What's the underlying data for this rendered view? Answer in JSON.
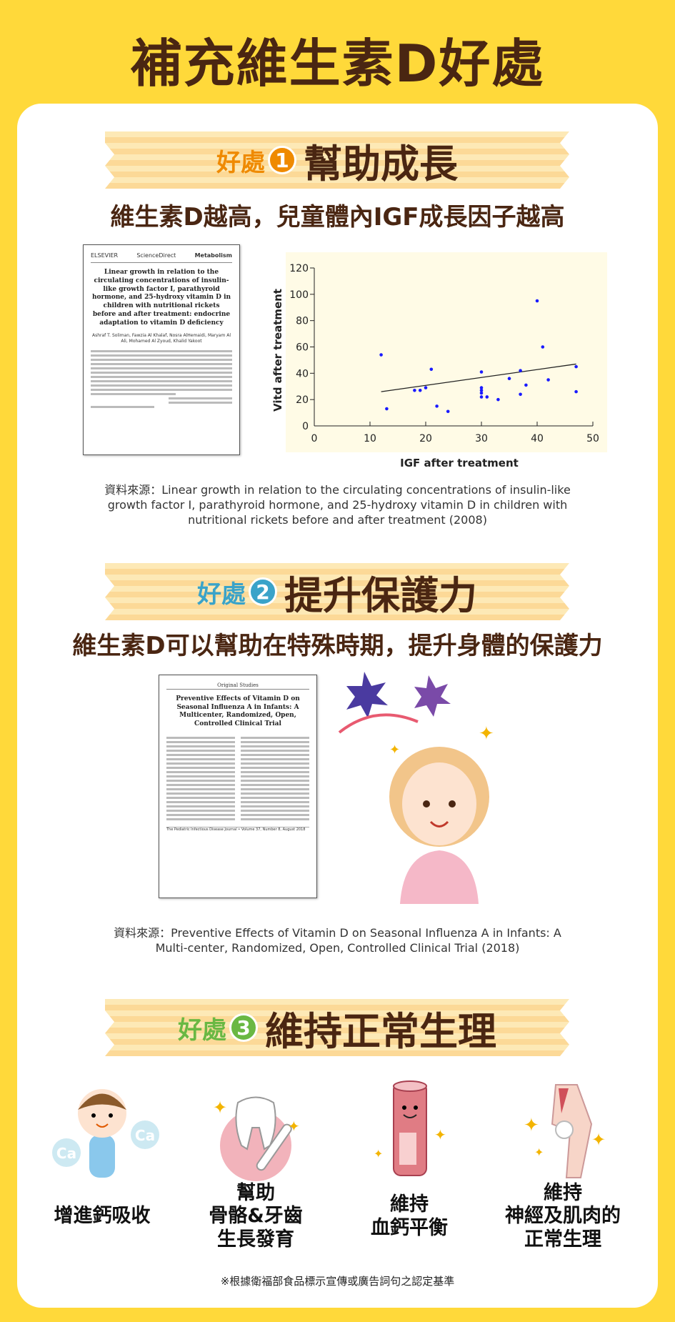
{
  "title": "補充維生素D好處",
  "benefit_tag": "好處",
  "sections": [
    {
      "num": "1",
      "heading": "幫助成長",
      "subtitle": "維生素D越高，兒童體內IGF成長因子越高",
      "color": "#ef8a00",
      "paper": {
        "journal": "Metabolism",
        "publisher": "ScienceDirect",
        "title": "Linear growth in relation to the circulating concentrations of insulin-like growth factor I, parathyroid hormone, and 25-hydroxy vitamin D in children with nutritional rickets before and after treatment: endocrine adaptation to vitamin D deficiency",
        "authors": "Ashraf T. Soliman, Fawzia Al Khalaf, Nosra AlHemaidi, Maryam Al Ali, Mohamed Al Zyoud, Khalid Yakoot"
      },
      "source": "資料來源：Linear growth in relation to the circulating concentrations of insulin-like growth factor I, parathyroid hormone, and 25-hydroxy vitamin D in children with nutritional rickets before and after treatment (2008)"
    },
    {
      "num": "2",
      "heading": "提升保護力",
      "subtitle": "維生素D可以幫助在特殊時期，提升身體的保護力",
      "color": "#3aa3c9",
      "paper": {
        "section": "Original Studies",
        "title": "Preventive Effects of Vitamin D on Seasonal Influenza A in Infants: A Multicenter, Randomized, Open, Controlled Clinical Trial",
        "footer": "The Pediatric Infectious Disease Journal • Volume 37, Number 8, August 2018"
      },
      "source": "資料來源：Preventive Effects of Vitamin D on Seasonal Influenza A in Infants: A Multi-center, Randomized, Open, Controlled Clinical Trial (2018)"
    },
    {
      "num": "3",
      "heading": "維持正常生理",
      "color": "#6ab843"
    }
  ],
  "features": [
    {
      "label": "增進鈣吸收",
      "icon": "baby-calcium-icon",
      "badge": "Ca"
    },
    {
      "label": "幫助\n骨骼&牙齒\n生長發育",
      "icon": "tooth-bone-icon"
    },
    {
      "label": "維持\n血鈣平衡",
      "icon": "blood-vessel-icon"
    },
    {
      "label": "維持\n神經及肌肉的\n正常生理",
      "icon": "knee-joint-icon"
    }
  ],
  "footnote": "※根據衛福部食品標示宣傳或廣告詞句之認定基準",
  "colors": {
    "background": "#ffd93a",
    "text": "#4a2612",
    "point": "#1a1aff",
    "chart_bg": "#fffbe6"
  },
  "chart_data": {
    "type": "scatter",
    "xlabel": "IGF after treatment",
    "ylabel": "Vitd after treatment",
    "xlim": [
      0,
      50
    ],
    "ylim": [
      0,
      120
    ],
    "xticks": [
      0,
      10,
      20,
      30,
      40,
      50
    ],
    "yticks": [
      0,
      20,
      40,
      60,
      80,
      100,
      120
    ],
    "grid": false,
    "points": [
      [
        12,
        54
      ],
      [
        13,
        13
      ],
      [
        18,
        27
      ],
      [
        19,
        27
      ],
      [
        20,
        29
      ],
      [
        21,
        43
      ],
      [
        22,
        15
      ],
      [
        24,
        11
      ],
      [
        30,
        41
      ],
      [
        30,
        29
      ],
      [
        30,
        27
      ],
      [
        30,
        25
      ],
      [
        30,
        22
      ],
      [
        31,
        22
      ],
      [
        33,
        20
      ],
      [
        35,
        36
      ],
      [
        37,
        42
      ],
      [
        37,
        24
      ],
      [
        38,
        31
      ],
      [
        40,
        95
      ],
      [
        41,
        60
      ],
      [
        42,
        35
      ],
      [
        47,
        45
      ],
      [
        47,
        26
      ]
    ],
    "trendline": [
      [
        12,
        26
      ],
      [
        47,
        47
      ]
    ]
  }
}
